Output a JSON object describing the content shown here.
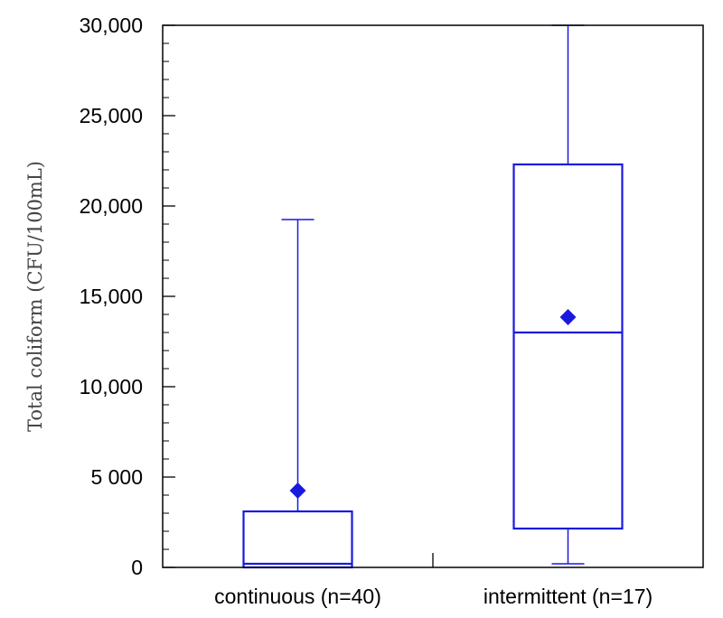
{
  "chart_data": {
    "type": "boxplot",
    "title": "",
    "xlabel": "",
    "ylabel": "Total coliform (CFU/100mL)",
    "ylim": [
      0,
      30000
    ],
    "yticks": [
      0,
      5000,
      10000,
      15000,
      20000,
      25000,
      30000
    ],
    "ytick_labels": [
      "0",
      "5 000",
      "10,000",
      "15,000",
      "20,000",
      "25,000",
      "30,000"
    ],
    "y_minor_step": 1000,
    "grid": false,
    "legend": "none",
    "color": "#1a1adf",
    "categories": [
      "continuous (n=40)",
      "intermittent (n=17)"
    ],
    "boxes": [
      {
        "whisker_low": 0,
        "q1": 0,
        "median": 200,
        "q3": 3100,
        "whisker_high": 19250,
        "mean": 4250
      },
      {
        "whisker_low": 200,
        "q1": 2150,
        "median": 13000,
        "q3": 22300,
        "whisker_high": 30000,
        "mean": 13850
      }
    ]
  }
}
